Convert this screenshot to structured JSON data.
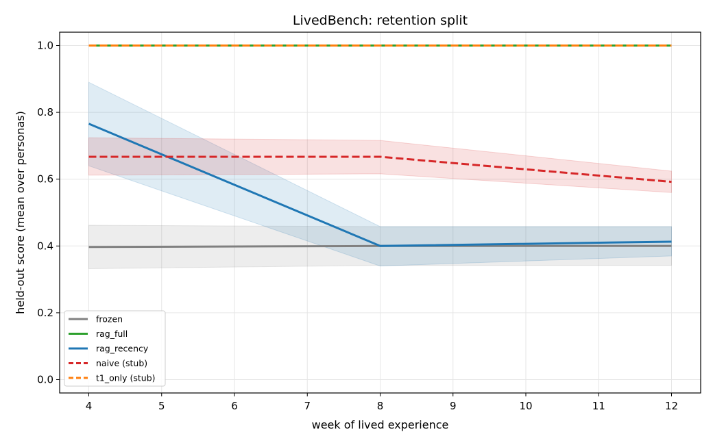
{
  "chart_data": {
    "type": "line",
    "title": "LivedBench: retention split",
    "xlabel": "week of lived experience",
    "ylabel": "held-out score (mean over personas)",
    "xlim": [
      3.6,
      12.4
    ],
    "ylim": [
      -0.04,
      1.04
    ],
    "xticks": [
      4,
      5,
      6,
      7,
      8,
      9,
      10,
      11,
      12
    ],
    "yticks": [
      "0.0",
      "0.2",
      "0.4",
      "0.6",
      "0.8",
      "1.0"
    ],
    "grid": true,
    "legend_position": "lower-left",
    "series": [
      {
        "name": "frozen",
        "color": "#808080",
        "dash": "solid",
        "x": [
          4,
          8,
          12
        ],
        "y": [
          0.397,
          0.4,
          0.4
        ],
        "band_lower": [
          0.332,
          0.342,
          0.342
        ],
        "band_upper": [
          0.462,
          0.458,
          0.458
        ]
      },
      {
        "name": "rag_full",
        "color": "#2ca02c",
        "dash": "solid",
        "x": [
          4,
          8,
          12
        ],
        "y": [
          1.0,
          1.0,
          1.0
        ]
      },
      {
        "name": "rag_recency",
        "color": "#1f77b4",
        "dash": "solid",
        "x": [
          4,
          8,
          12
        ],
        "y": [
          0.766,
          0.4,
          0.413
        ],
        "band_lower": [
          0.64,
          0.34,
          0.37
        ],
        "band_upper": [
          0.89,
          0.458,
          0.458
        ]
      },
      {
        "name": "naive (stub)",
        "color": "#d62728",
        "dash": "dashed",
        "x": [
          4,
          8,
          12
        ],
        "y": [
          0.667,
          0.667,
          0.592
        ],
        "band_lower": [
          0.612,
          0.616,
          0.56
        ],
        "band_upper": [
          0.724,
          0.716,
          0.624
        ]
      },
      {
        "name": "t1_only (stub)",
        "color": "#ff7f0e",
        "dash": "dashed",
        "x": [
          4,
          8,
          12
        ],
        "y": [
          1.0,
          1.0,
          1.0
        ]
      }
    ]
  }
}
